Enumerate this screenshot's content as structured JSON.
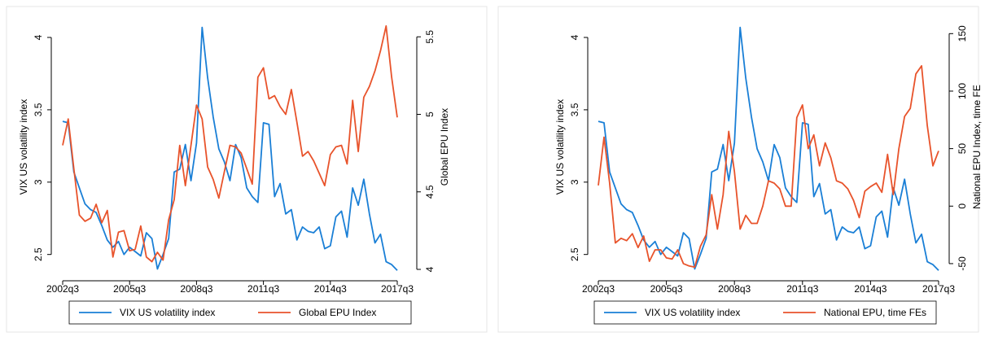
{
  "chart_data": [
    {
      "type": "line",
      "categories": [
        "2002q3",
        null,
        null,
        null,
        null,
        null,
        null,
        null,
        null,
        null,
        null,
        null,
        "2005q3",
        null,
        null,
        null,
        null,
        null,
        null,
        null,
        null,
        null,
        null,
        null,
        "2008q3",
        null,
        null,
        null,
        null,
        null,
        null,
        null,
        null,
        null,
        null,
        null,
        "2011q3",
        null,
        null,
        null,
        null,
        null,
        null,
        null,
        null,
        null,
        null,
        null,
        "2014q3",
        null,
        null,
        null,
        null,
        null,
        null,
        null,
        null,
        null,
        null,
        null,
        "2017q3"
      ],
      "y_label": "VIX US volatility index",
      "y2_label": "Global EPU Index",
      "ylim": [
        2.397,
        4.09
      ],
      "yticks": [
        2.5,
        3,
        3.5,
        4
      ],
      "y2lim": [
        4.0,
        5.58
      ],
      "y2ticks": [
        4,
        4.5,
        5,
        5.5
      ],
      "series": [
        {
          "name": "VIX US volatility index",
          "color": "#1a7fd6",
          "values": [
            3.42,
            3.41,
            3.07,
            2.96,
            2.85,
            2.81,
            2.79,
            2.7,
            2.6,
            2.55,
            2.59,
            2.5,
            2.55,
            2.52,
            2.49,
            2.65,
            2.61,
            2.4,
            2.5,
            2.61,
            3.07,
            3.09,
            3.26,
            3.01,
            3.27,
            4.07,
            3.72,
            3.45,
            3.23,
            3.14,
            3.01,
            3.26,
            3.17,
            2.96,
            2.9,
            2.86,
            3.41,
            3.4,
            2.9,
            2.99,
            2.78,
            2.81,
            2.6,
            2.69,
            2.66,
            2.65,
            2.69,
            2.54,
            2.56,
            2.76,
            2.8,
            2.62,
            2.96,
            2.84,
            3.02,
            2.78,
            2.58,
            2.64,
            2.45,
            2.43,
            2.39
          ]
        },
        {
          "name": "Global EPU Index",
          "color": "#e8532b",
          "axis": "y2",
          "values": [
            4.8,
            4.97,
            4.65,
            4.35,
            4.31,
            4.33,
            4.42,
            4.3,
            4.38,
            4.08,
            4.24,
            4.25,
            4.12,
            4.13,
            4.28,
            4.08,
            4.05,
            4.11,
            4.06,
            4.32,
            4.45,
            4.8,
            4.54,
            4.8,
            5.06,
            4.97,
            4.66,
            4.58,
            4.46,
            4.63,
            4.8,
            4.79,
            4.75,
            4.65,
            4.55,
            5.24,
            5.3,
            5.1,
            5.12,
            5.05,
            5.0,
            5.16,
            4.95,
            4.73,
            4.76,
            4.7,
            4.62,
            4.54,
            4.74,
            4.79,
            4.8,
            4.68,
            5.09,
            4.76,
            5.11,
            5.18,
            5.28,
            5.41,
            5.57,
            5.24,
            4.98
          ]
        }
      ]
    },
    {
      "type": "line",
      "categories": [
        "2002q3",
        null,
        null,
        null,
        null,
        null,
        null,
        null,
        null,
        null,
        null,
        null,
        "2005q3",
        null,
        null,
        null,
        null,
        null,
        null,
        null,
        null,
        null,
        null,
        null,
        "2008q3",
        null,
        null,
        null,
        null,
        null,
        null,
        null,
        null,
        null,
        null,
        null,
        "2011q3",
        null,
        null,
        null,
        null,
        null,
        null,
        null,
        null,
        null,
        null,
        null,
        "2014q3",
        null,
        null,
        null,
        null,
        null,
        null,
        null,
        null,
        null,
        null,
        null,
        "2017q3"
      ],
      "y_label": "VIX US volatility index",
      "y2_label": "National EPU Index, time FE",
      "ylim": [
        2.397,
        4.09
      ],
      "yticks": [
        2.5,
        3,
        3.5,
        4
      ],
      "y2lim": [
        -55,
        158
      ],
      "y2ticks": [
        -50,
        0,
        50,
        100,
        150
      ],
      "series": [
        {
          "name": "VIX US volatility index",
          "color": "#1a7fd6",
          "values": [
            3.42,
            3.41,
            3.07,
            2.96,
            2.85,
            2.81,
            2.79,
            2.7,
            2.6,
            2.55,
            2.59,
            2.5,
            2.55,
            2.52,
            2.49,
            2.65,
            2.61,
            2.4,
            2.5,
            2.61,
            3.07,
            3.09,
            3.26,
            3.01,
            3.27,
            4.07,
            3.72,
            3.45,
            3.23,
            3.14,
            3.01,
            3.26,
            3.17,
            2.96,
            2.9,
            2.86,
            3.41,
            3.4,
            2.9,
            2.99,
            2.78,
            2.81,
            2.6,
            2.69,
            2.66,
            2.65,
            2.69,
            2.54,
            2.56,
            2.76,
            2.8,
            2.62,
            2.96,
            2.84,
            3.02,
            2.78,
            2.58,
            2.64,
            2.45,
            2.43,
            2.39
          ]
        },
        {
          "name": "National EPU, time FEs",
          "color": "#e8532b",
          "axis": "y2",
          "values": [
            18,
            60,
            20,
            -32,
            -28,
            -30,
            -24,
            -36,
            -26,
            -48,
            -38,
            -38,
            -45,
            -46,
            -38,
            -50,
            -52,
            -53,
            -35,
            -25,
            10,
            -20,
            10,
            65,
            30,
            -20,
            -8,
            -15,
            -15,
            0,
            22,
            20,
            15,
            0,
            0,
            77,
            88,
            50,
            62,
            35,
            55,
            42,
            22,
            20,
            15,
            5,
            -10,
            13,
            17,
            20,
            12,
            45,
            10,
            50,
            78,
            85,
            115,
            122,
            70,
            35,
            48
          ]
        }
      ]
    }
  ]
}
